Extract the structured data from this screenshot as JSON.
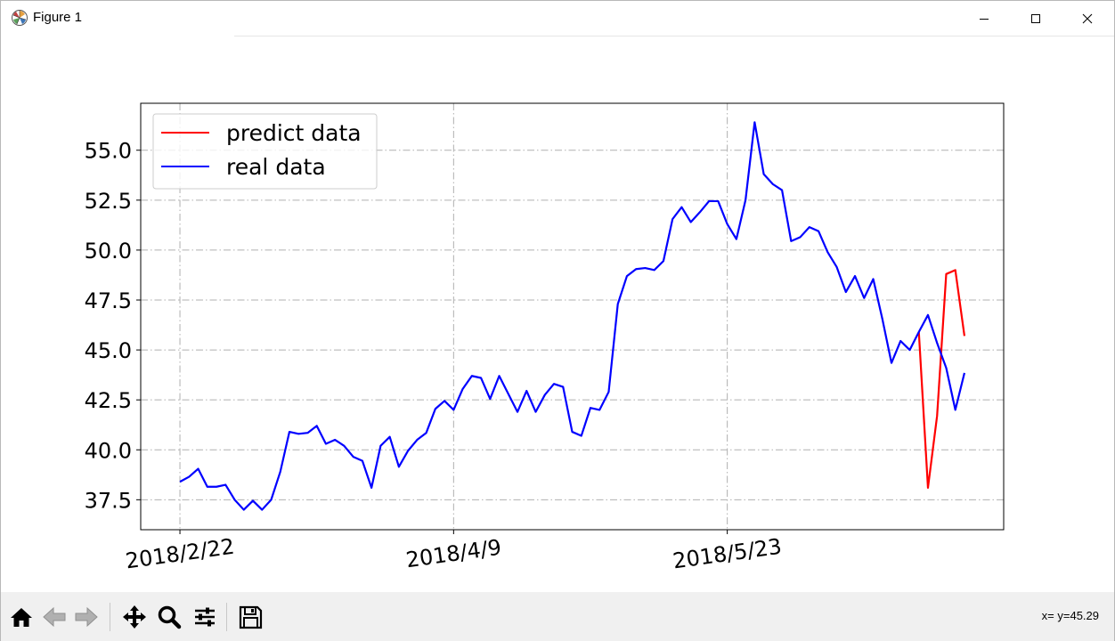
{
  "window": {
    "title": "Figure 1",
    "controls": {
      "minimize": "minimize-icon",
      "maximize": "maximize-icon",
      "close": "close-icon"
    }
  },
  "toolbar": {
    "buttons": [
      "home-icon",
      "back-arrow-icon",
      "forward-arrow-icon",
      "pan-icon",
      "zoom-icon",
      "subplots-config-icon",
      "save-icon"
    ],
    "coords_text": "x= y=45.29"
  },
  "chart_data": {
    "type": "line",
    "xlabel": "",
    "ylabel": "",
    "xtick_labels": [
      "2018/2/22",
      "2018/4/9",
      "2018/5/23"
    ],
    "xtick_index": [
      0,
      30,
      60
    ],
    "xlim": [
      -4.3,
      90.3
    ],
    "yticks": [
      37.5,
      40.0,
      42.5,
      45.0,
      47.5,
      50.0,
      52.5,
      55.0
    ],
    "ytick_labels": [
      "37.5",
      "40.0",
      "42.5",
      "45.0",
      "47.5",
      "50.0",
      "52.5",
      "55.0"
    ],
    "ylim": [
      36.0,
      57.35
    ],
    "grid": true,
    "grid_style": "dash-dot",
    "legend_position": "upper left",
    "colors": {
      "predict": "#ff0000",
      "real": "#0000ff"
    },
    "series": [
      {
        "name": "predict data",
        "color": "#ff0000",
        "start_index": 81,
        "values": [
          45.9,
          38.1,
          41.7,
          48.8,
          49.0,
          45.7
        ]
      },
      {
        "name": "real data",
        "color": "#0000ff",
        "start_index": 0,
        "values": [
          38.4,
          38.65,
          39.05,
          38.15,
          38.15,
          38.25,
          37.5,
          37.0,
          37.45,
          37.0,
          37.5,
          38.9,
          40.9,
          40.8,
          40.85,
          41.2,
          40.3,
          40.5,
          40.2,
          39.65,
          39.45,
          38.1,
          40.2,
          40.65,
          39.15,
          39.95,
          40.5,
          40.85,
          42.05,
          42.45,
          42.0,
          43.05,
          43.7,
          43.6,
          42.55,
          43.7,
          42.8,
          41.9,
          42.95,
          41.9,
          42.75,
          43.3,
          43.15,
          40.9,
          40.7,
          42.1,
          42.0,
          42.9,
          47.3,
          48.7,
          49.05,
          49.1,
          49.0,
          49.45,
          51.55,
          52.15,
          51.4,
          51.9,
          52.45,
          52.45,
          51.3,
          50.55,
          52.5,
          56.4,
          53.8,
          53.3,
          53.0,
          50.45,
          50.65,
          51.15,
          50.95,
          49.9,
          49.15,
          47.9,
          48.7,
          47.6,
          48.55,
          46.55,
          44.35,
          45.45,
          45.0,
          45.9,
          46.75,
          45.35,
          44.1,
          42.0,
          43.85
        ]
      }
    ]
  }
}
